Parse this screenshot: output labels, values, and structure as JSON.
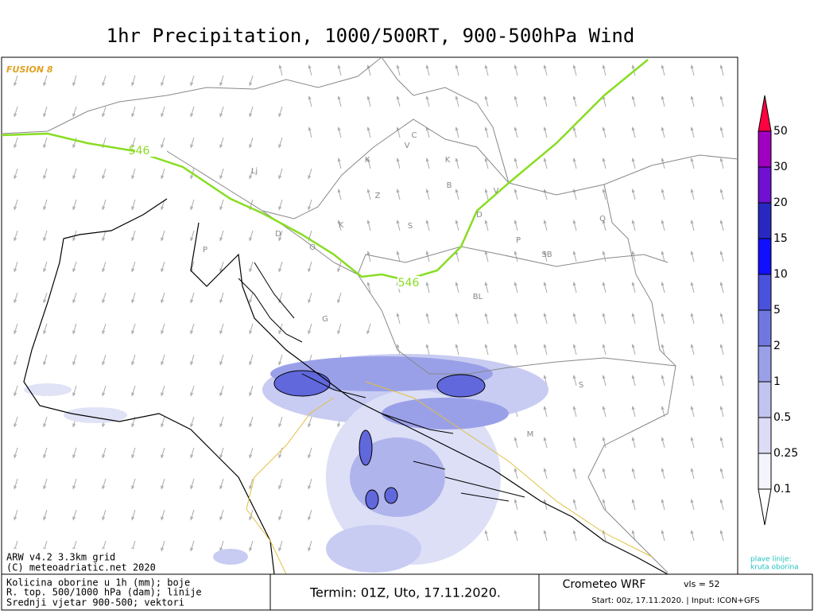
{
  "header": {
    "title": "1hr Precipitation, 1000/500RT, 900-500hPa Wind"
  },
  "map": {
    "logo": "FUSION 8",
    "contour_labels": [
      "546",
      "546"
    ],
    "place_labels": [
      "Lj",
      "P",
      "D",
      "O",
      "K",
      "Z",
      "S",
      "K",
      "K",
      "C",
      "V",
      "B",
      "V",
      "D",
      "P",
      "Q",
      "SB",
      "BL",
      "G",
      "S",
      "M"
    ],
    "model_info": [
      "ARW v4.2 3.3km grid",
      "(C) meteoadriatic.net 2020"
    ],
    "note": [
      "plave linije:",
      "kruta oborina"
    ]
  },
  "colorbar": {
    "labels": [
      "0.1",
      "0.25",
      "0.5",
      "1",
      "2",
      "5",
      "10",
      "15",
      "20",
      "30",
      "50"
    ],
    "colors": [
      "#f4f4fc",
      "#dcdcf6",
      "#c0c4ee",
      "#9aa0e8",
      "#7078e0",
      "#4a52dc",
      "#1010ff",
      "#2828c0",
      "#7010d0",
      "#a000c0",
      "#ff0040"
    ]
  },
  "footer": {
    "legend": [
      "Kolicina oborine u 1h (mm); boje",
      "R. top. 500/1000 hPa (dam); linije",
      "Srednji vjetar 900-500; vektori"
    ],
    "run": "Termin: 01Z, Uto, 17.11.2020.",
    "brand": "Crometeo WRF",
    "levels": "vls = 52",
    "start": "Start: 00z, 17.11.2020. | Input: ICON+GFS"
  }
}
